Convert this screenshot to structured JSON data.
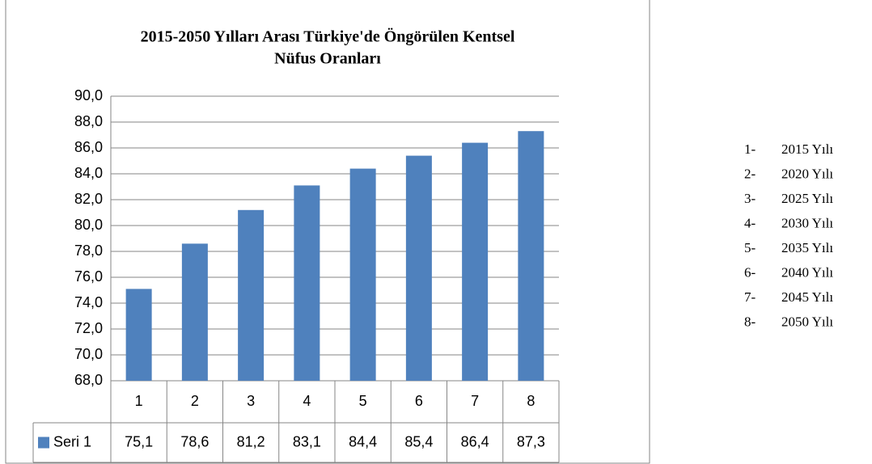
{
  "chart_data": {
    "type": "bar",
    "title": "2015-2050 Yılları Arası Türkiye'de Öngörülen Kentsel",
    "subtitle": "Nüfus Oranları",
    "categories": [
      "1",
      "2",
      "3",
      "4",
      "5",
      "6",
      "7",
      "8"
    ],
    "series": [
      {
        "name": "Seri 1",
        "color": "#4f81bd",
        "values": [
          75.1,
          78.6,
          81.2,
          83.1,
          84.4,
          85.4,
          86.4,
          87.3
        ],
        "value_labels": [
          "75,1",
          "78,6",
          "81,2",
          "83,1",
          "84,4",
          "85,4",
          "86,4",
          "87,3"
        ]
      }
    ],
    "ylim": [
      68,
      90
    ],
    "yticks": [
      {
        "value": 68,
        "label": "68,0"
      },
      {
        "value": 70,
        "label": "70,0"
      },
      {
        "value": 72,
        "label": "72,0"
      },
      {
        "value": 74,
        "label": "74,0"
      },
      {
        "value": 76,
        "label": "76,0"
      },
      {
        "value": 78,
        "label": "78,0"
      },
      {
        "value": 80,
        "label": "80,0"
      },
      {
        "value": 82,
        "label": "82,0"
      },
      {
        "value": 84,
        "label": "84,0"
      },
      {
        "value": 86,
        "label": "86,0"
      },
      {
        "value": 88,
        "label": "88,0"
      },
      {
        "value": 90,
        "label": "90,0"
      }
    ],
    "grid": true,
    "annotations": [
      {
        "number": "1-",
        "label": "2015 Yılı"
      },
      {
        "number": "2-",
        "label": "2020 Yılı"
      },
      {
        "number": "3-",
        "label": "2025 Yılı"
      },
      {
        "number": "4-",
        "label": "2030 Yılı"
      },
      {
        "number": "5-",
        "label": "2035 Yılı"
      },
      {
        "number": "6-",
        "label": "2040 Yılı"
      },
      {
        "number": "7-",
        "label": "2045 Yılı"
      },
      {
        "number": "8-",
        "label": "2050 Yılı"
      }
    ]
  }
}
